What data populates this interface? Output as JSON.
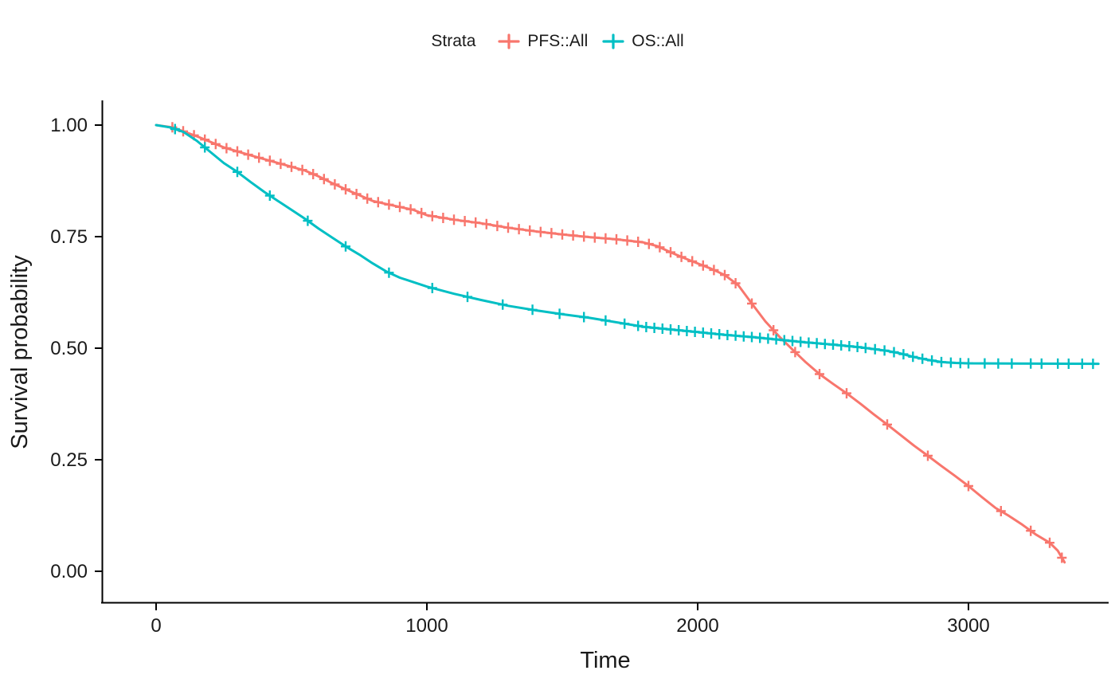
{
  "legend": {
    "title": "Strata",
    "items": [
      {
        "label": "PFS::All",
        "color": "#F8766D"
      },
      {
        "label": "OS::All",
        "color": "#00BFC4"
      }
    ]
  },
  "axes": {
    "x_label": "Time",
    "y_label": "Survival probability",
    "x_tick_labels": [
      "0",
      "1000",
      "2000",
      "3000"
    ],
    "y_tick_labels": [
      "0.00",
      "0.25",
      "0.50",
      "0.75",
      "1.00"
    ]
  },
  "chart_data": {
    "type": "line",
    "subtype": "kaplan-meier-survival",
    "title": "",
    "xlabel": "Time",
    "ylabel": "Survival probability",
    "xlim": [
      0,
      3480
    ],
    "ylim": [
      0,
      1
    ],
    "x_ticks": [
      0,
      1000,
      2000,
      3000
    ],
    "y_ticks": [
      0.0,
      0.25,
      0.5,
      0.75,
      1.0
    ],
    "grid": false,
    "legend_position": "top",
    "legend_title": "Strata",
    "series": [
      {
        "name": "PFS::All",
        "color": "#F8766D",
        "points": [
          [
            0,
            1.0
          ],
          [
            60,
            0.995
          ],
          [
            150,
            0.975
          ],
          [
            250,
            0.95
          ],
          [
            350,
            0.932
          ],
          [
            450,
            0.915
          ],
          [
            550,
            0.898
          ],
          [
            600,
            0.885
          ],
          [
            650,
            0.87
          ],
          [
            700,
            0.856
          ],
          [
            750,
            0.843
          ],
          [
            800,
            0.83
          ],
          [
            850,
            0.823
          ],
          [
            950,
            0.81
          ],
          [
            1000,
            0.798
          ],
          [
            1100,
            0.788
          ],
          [
            1200,
            0.78
          ],
          [
            1300,
            0.77
          ],
          [
            1400,
            0.762
          ],
          [
            1500,
            0.755
          ],
          [
            1600,
            0.749
          ],
          [
            1700,
            0.744
          ],
          [
            1800,
            0.737
          ],
          [
            1850,
            0.729
          ],
          [
            1900,
            0.715
          ],
          [
            1950,
            0.702
          ],
          [
            2000,
            0.69
          ],
          [
            2050,
            0.678
          ],
          [
            2100,
            0.664
          ],
          [
            2150,
            0.641
          ],
          [
            2200,
            0.6
          ],
          [
            2250,
            0.56
          ],
          [
            2300,
            0.527
          ],
          [
            2350,
            0.497
          ],
          [
            2400,
            0.468
          ],
          [
            2450,
            0.442
          ],
          [
            2500,
            0.42
          ],
          [
            2550,
            0.399
          ],
          [
            2600,
            0.376
          ],
          [
            2650,
            0.352
          ],
          [
            2700,
            0.329
          ],
          [
            2750,
            0.305
          ],
          [
            2800,
            0.281
          ],
          [
            2850,
            0.259
          ],
          [
            2900,
            0.236
          ],
          [
            2950,
            0.214
          ],
          [
            3000,
            0.191
          ],
          [
            3050,
            0.166
          ],
          [
            3100,
            0.142
          ],
          [
            3150,
            0.124
          ],
          [
            3200,
            0.104
          ],
          [
            3250,
            0.082
          ],
          [
            3300,
            0.064
          ],
          [
            3330,
            0.046
          ],
          [
            3355,
            0.02
          ]
        ],
        "censor_times": [
          60,
          100,
          140,
          180,
          220,
          260,
          300,
          340,
          380,
          420,
          460,
          500,
          540,
          580,
          620,
          660,
          700,
          740,
          780,
          820,
          860,
          900,
          940,
          980,
          1020,
          1060,
          1100,
          1140,
          1180,
          1220,
          1260,
          1300,
          1340,
          1380,
          1420,
          1460,
          1500,
          1540,
          1580,
          1620,
          1660,
          1700,
          1740,
          1780,
          1820,
          1860,
          1900,
          1940,
          1980,
          2020,
          2060,
          2100,
          2140,
          2200,
          2280,
          2360,
          2450,
          2550,
          2700,
          2850,
          3000,
          3120,
          3230,
          3300,
          3345
        ]
      },
      {
        "name": "OS::All",
        "color": "#00BFC4",
        "points": [
          [
            0,
            1.0
          ],
          [
            50,
            0.995
          ],
          [
            100,
            0.985
          ],
          [
            150,
            0.965
          ],
          [
            200,
            0.94
          ],
          [
            250,
            0.915
          ],
          [
            300,
            0.895
          ],
          [
            350,
            0.872
          ],
          [
            400,
            0.85
          ],
          [
            450,
            0.83
          ],
          [
            500,
            0.81
          ],
          [
            550,
            0.79
          ],
          [
            600,
            0.768
          ],
          [
            650,
            0.748
          ],
          [
            700,
            0.728
          ],
          [
            750,
            0.71
          ],
          [
            800,
            0.69
          ],
          [
            850,
            0.672
          ],
          [
            900,
            0.658
          ],
          [
            950,
            0.648
          ],
          [
            1000,
            0.638
          ],
          [
            1100,
            0.622
          ],
          [
            1200,
            0.608
          ],
          [
            1300,
            0.595
          ],
          [
            1400,
            0.585
          ],
          [
            1500,
            0.576
          ],
          [
            1600,
            0.568
          ],
          [
            1700,
            0.558
          ],
          [
            1800,
            0.548
          ],
          [
            1900,
            0.542
          ],
          [
            2000,
            0.536
          ],
          [
            2100,
            0.53
          ],
          [
            2200,
            0.525
          ],
          [
            2300,
            0.519
          ],
          [
            2400,
            0.513
          ],
          [
            2500,
            0.508
          ],
          [
            2600,
            0.502
          ],
          [
            2700,
            0.494
          ],
          [
            2750,
            0.488
          ],
          [
            2800,
            0.48
          ],
          [
            2850,
            0.474
          ],
          [
            2900,
            0.469
          ],
          [
            2950,
            0.467
          ],
          [
            3000,
            0.466
          ],
          [
            3480,
            0.465
          ]
        ],
        "censor_times": [
          70,
          180,
          300,
          420,
          560,
          700,
          860,
          1020,
          1150,
          1280,
          1390,
          1490,
          1580,
          1660,
          1730,
          1780,
          1810,
          1840,
          1870,
          1900,
          1930,
          1960,
          1990,
          2020,
          2050,
          2080,
          2110,
          2140,
          2170,
          2200,
          2230,
          2260,
          2290,
          2320,
          2350,
          2380,
          2410,
          2440,
          2470,
          2500,
          2530,
          2560,
          2590,
          2620,
          2655,
          2690,
          2725,
          2760,
          2795,
          2830,
          2865,
          2900,
          2935,
          2970,
          3000,
          3060,
          3110,
          3160,
          3230,
          3270,
          3330,
          3370,
          3420,
          3460
        ]
      }
    ]
  }
}
